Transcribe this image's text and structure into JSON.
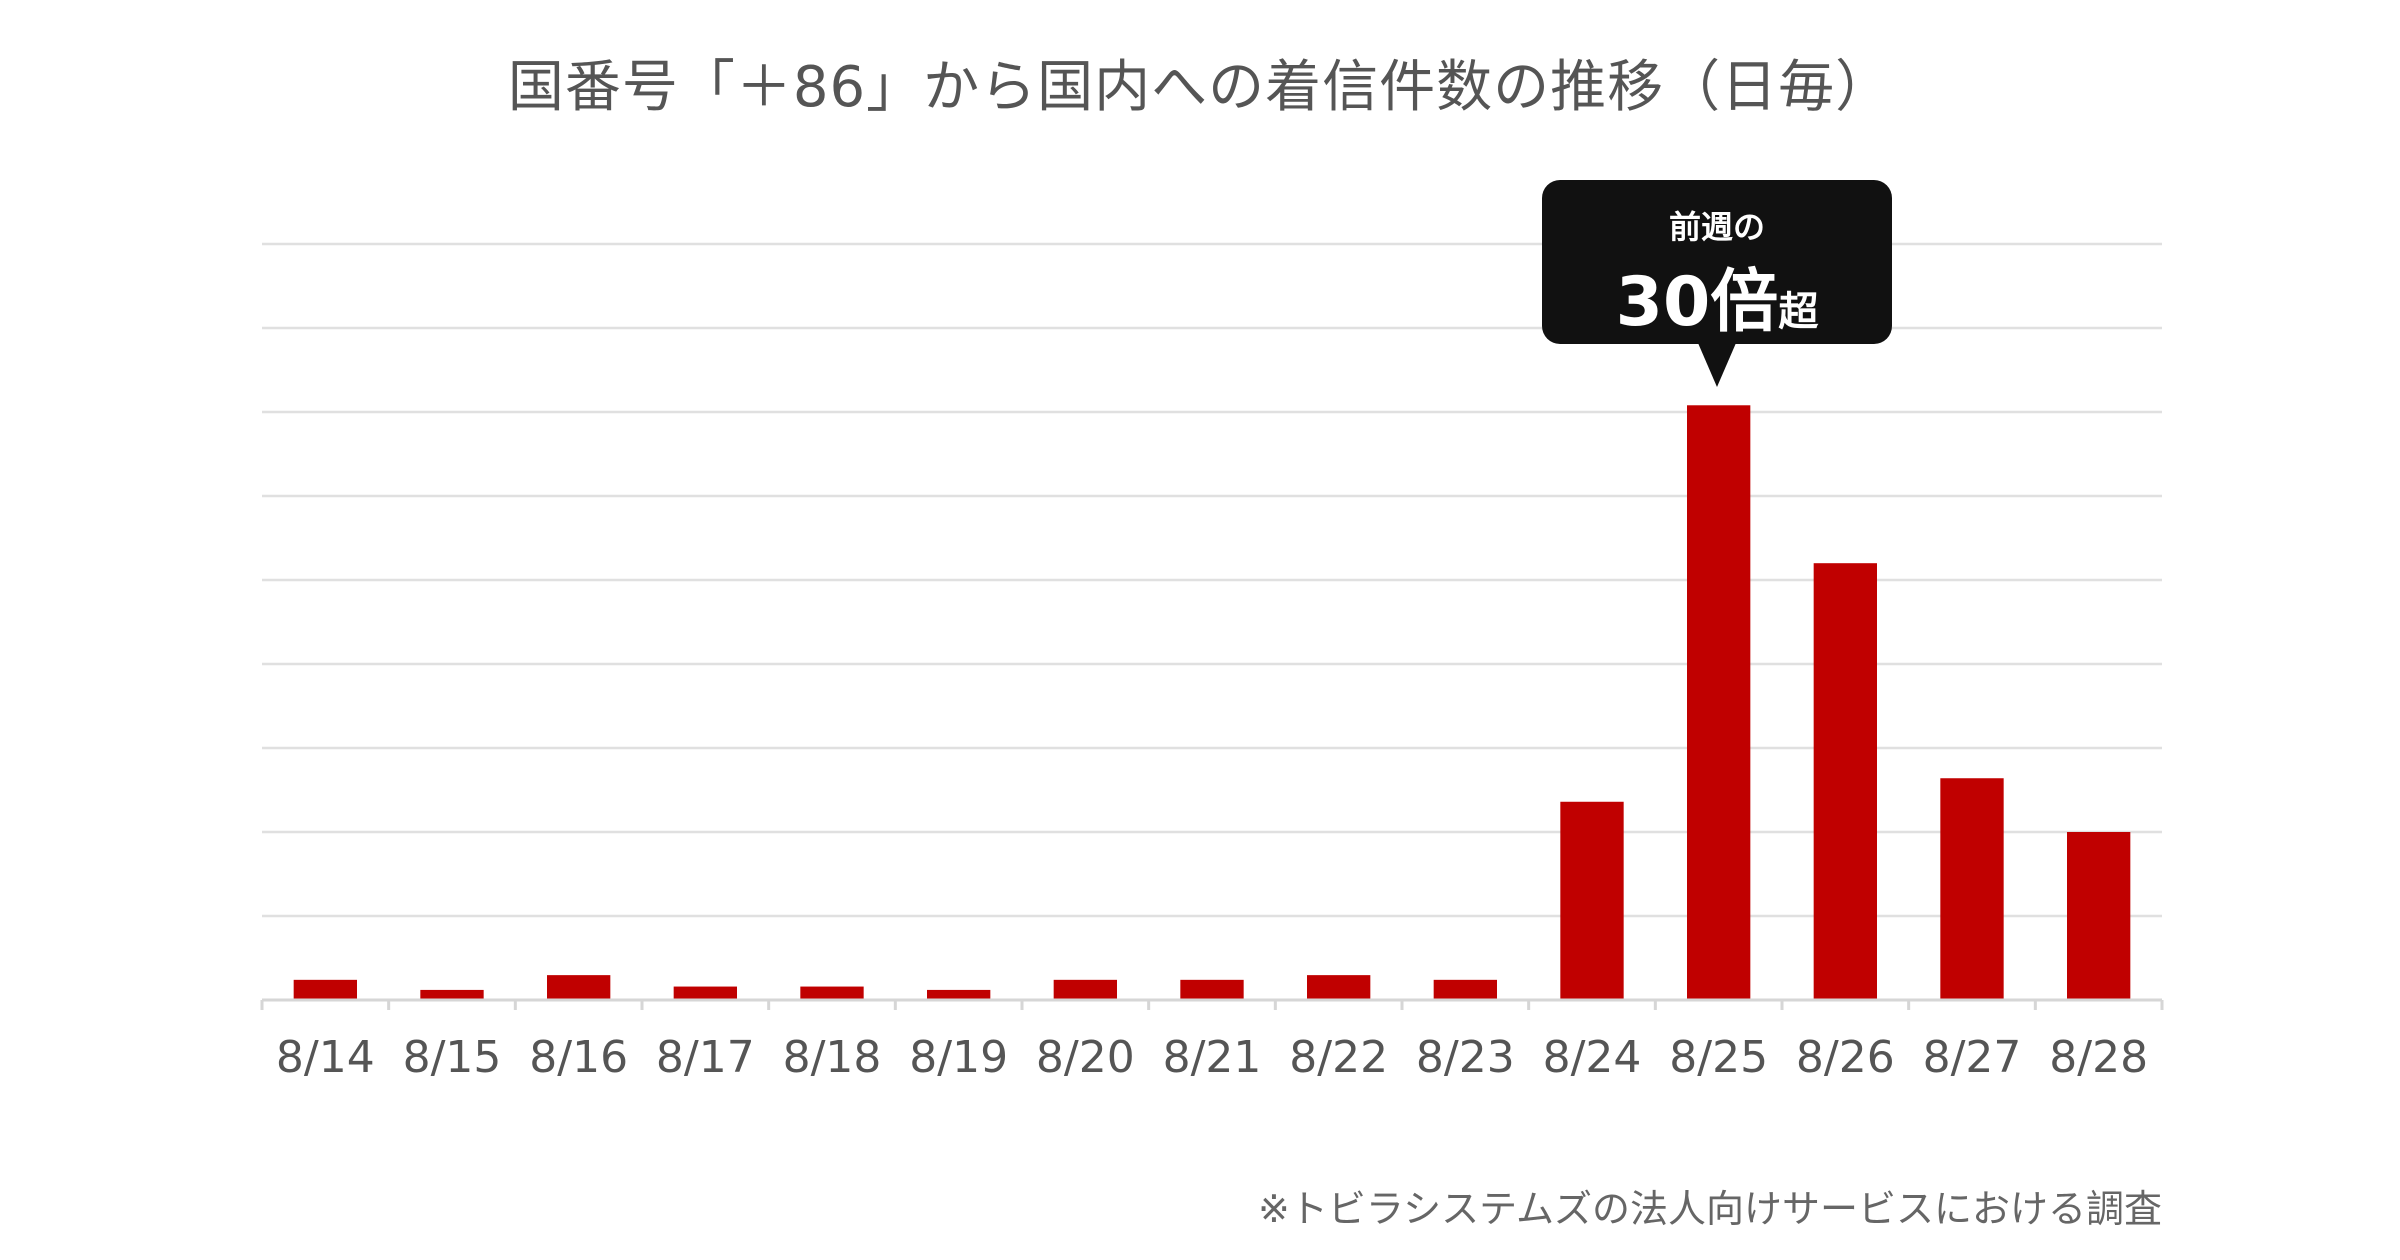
{
  "chart_data": {
    "type": "bar",
    "title": "国番号「＋86」から国内への着信件数の推移（日毎）",
    "categories": [
      "8/14",
      "8/15",
      "8/16",
      "8/17",
      "8/18",
      "8/19",
      "8/20",
      "8/21",
      "8/22",
      "8/23",
      "8/24",
      "8/25",
      "8/26",
      "8/27",
      "8/28"
    ],
    "values": [
      0.3,
      0.15,
      0.37,
      0.2,
      0.2,
      0.15,
      0.3,
      0.3,
      0.37,
      0.3,
      2.95,
      8.85,
      6.5,
      3.3,
      2.5
    ],
    "ylim": [
      0,
      10
    ],
    "gridlines": true,
    "yaxis_labels_shown": false,
    "bar_color": "#c00000",
    "annotation": {
      "target": "8/25",
      "line1": "前週の",
      "big": "30倍",
      "small": "超"
    },
    "footnote": "※トビラシステムズの法人向けサービスにおける調査"
  }
}
